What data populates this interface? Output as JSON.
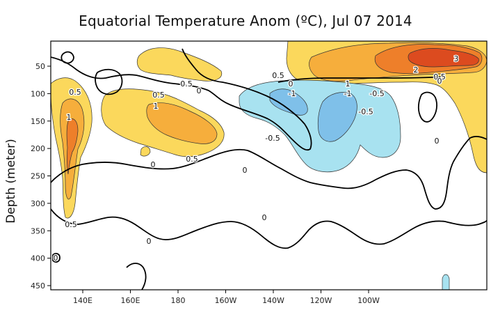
{
  "chart_data": {
    "type": "heatmap",
    "title": "Equatorial Temperature Anom (ºC), Jul 07 2014",
    "ylabel": "Depth (meter)",
    "xlabel": "",
    "x_ticks": [
      "140E",
      "160E",
      "180",
      "160W",
      "140W",
      "120W",
      "100W"
    ],
    "y_ticks": [
      "50",
      "100",
      "150",
      "200",
      "250",
      "300",
      "350",
      "400",
      "450"
    ],
    "ylim": [
      0,
      460
    ],
    "contour_levels": [
      -1,
      -0.5,
      0,
      0.5,
      1,
      2,
      3
    ],
    "contour_labels": [
      "0",
      "0.5",
      "1",
      "2",
      "3",
      "-0.5",
      "-1"
    ],
    "colors": {
      "warm_0_5": "#fbd85c",
      "warm_1": "#f6ae3c",
      "warm_2": "#ee7f2a",
      "warm_3": "#dc4b1f",
      "cool_neg_0_5": "#a8e2f0",
      "cool_neg_1": "#7fc0e9",
      "contour": "#000000",
      "background": "#ffffff"
    }
  }
}
